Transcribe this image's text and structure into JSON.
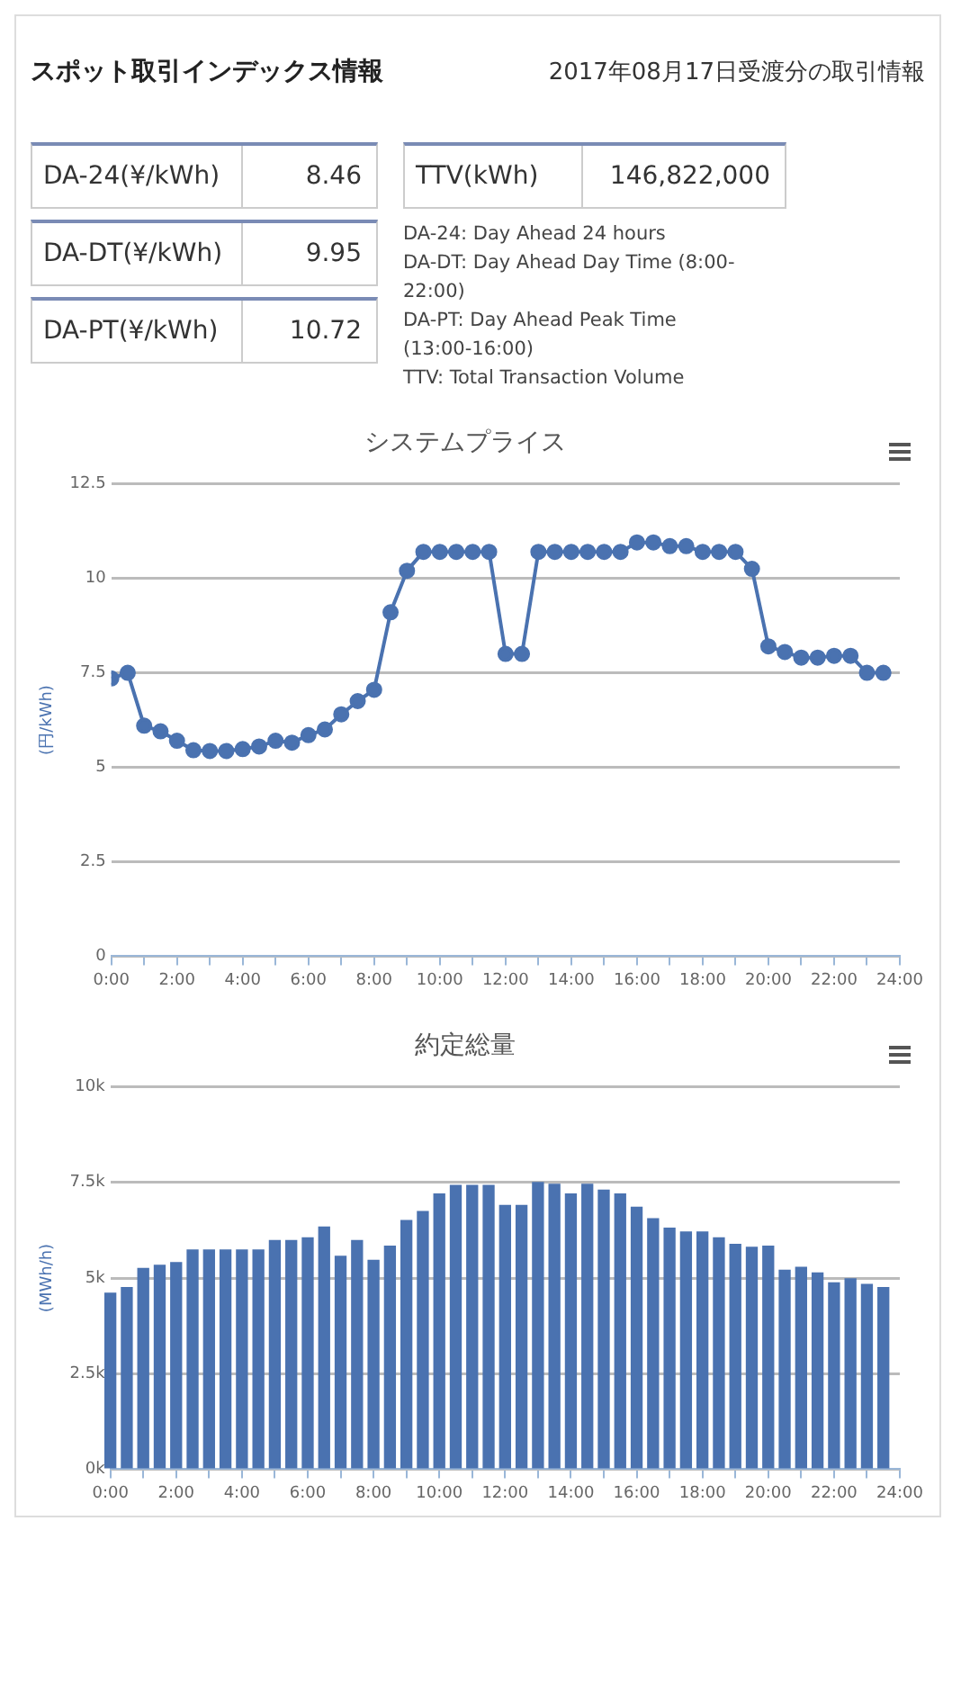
{
  "chart_data": [
    {
      "type": "other",
      "title": "スポット取引インデックス情報",
      "subtitle": "2017年08月17日受渡分の取引情報",
      "annotations": [
        "DA-24(¥/kWh)",
        "8.46",
        "DA-DT(¥/kWh)",
        "9.95",
        "DA-PT(¥/kWh)",
        "10.72",
        "TTV(kWh)",
        "146,822,000",
        "DA-24: Day Ahead 24 hours",
        "DA-DT: Day Ahead Day Time (8:00-22:00)",
        "DA-PT: Day Ahead Peak Time (13:00-16:00)",
        "TTV: Total Transaction Volume"
      ]
    },
    {
      "type": "line",
      "title": "システムプライス",
      "ylabel": "(円/kWh)",
      "marker": "circle",
      "grid": "y",
      "legend": false,
      "x": [
        0,
        0.5,
        1,
        1.5,
        2,
        2.5,
        3,
        3.5,
        4,
        4.5,
        5,
        5.5,
        6,
        6.5,
        7,
        7.5,
        8,
        8.5,
        9,
        9.5,
        10,
        10.5,
        11,
        11.5,
        12,
        12.5,
        13,
        13.5,
        14,
        14.5,
        15,
        15.5,
        16,
        16.5,
        17,
        17.5,
        18,
        18.5,
        19,
        19.5,
        20,
        20.5,
        21,
        21.5,
        22,
        22.5,
        23,
        23.5
      ],
      "series": [
        {
          "color": "#4a72b0",
          "values": [
            7.35,
            7.5,
            6.1,
            5.95,
            5.7,
            5.45,
            5.43,
            5.43,
            5.48,
            5.55,
            5.7,
            5.65,
            5.85,
            6.0,
            6.4,
            6.75,
            7.05,
            9.1,
            10.2,
            10.7,
            10.7,
            10.7,
            10.7,
            10.7,
            8.0,
            8.0,
            10.7,
            10.7,
            10.7,
            10.7,
            10.7,
            10.7,
            10.95,
            10.95,
            10.85,
            10.85,
            10.7,
            10.7,
            10.7,
            10.25,
            8.2,
            8.05,
            7.9,
            7.9,
            7.95,
            7.95,
            7.5,
            7.5
          ]
        }
      ],
      "xlim": [
        0,
        24
      ],
      "xticks": [
        {
          "value": 0,
          "label": "0:00"
        },
        {
          "value": 1,
          "label": null
        },
        {
          "value": 2,
          "label": "2:00"
        },
        {
          "value": 3,
          "label": null
        },
        {
          "value": 4,
          "label": "4:00"
        },
        {
          "value": 5,
          "label": null
        },
        {
          "value": 6,
          "label": "6:00"
        },
        {
          "value": 7,
          "label": null
        },
        {
          "value": 8,
          "label": "8:00"
        },
        {
          "value": 9,
          "label": null
        },
        {
          "value": 10,
          "label": "10:00"
        },
        {
          "value": 11,
          "label": null
        },
        {
          "value": 12,
          "label": "12:00"
        },
        {
          "value": 13,
          "label": null
        },
        {
          "value": 14,
          "label": "14:00"
        },
        {
          "value": 15,
          "label": null
        },
        {
          "value": 16,
          "label": "16:00"
        },
        {
          "value": 17,
          "label": null
        },
        {
          "value": 18,
          "label": "18:00"
        },
        {
          "value": 19,
          "label": null
        },
        {
          "value": 20,
          "label": "20:00"
        },
        {
          "value": 21,
          "label": null
        },
        {
          "value": 22,
          "label": "22:00"
        },
        {
          "value": 23,
          "label": null
        },
        {
          "value": 24,
          "label": "24:00"
        }
      ],
      "ylim": [
        0,
        12.5
      ],
      "yticks": [
        0,
        2.5,
        5,
        7.5,
        10,
        12.5
      ]
    },
    {
      "type": "bar",
      "title": "約定総量",
      "ylabel": "(MWh/h)",
      "grid": "y",
      "legend": false,
      "x": [
        0,
        0.5,
        1,
        1.5,
        2,
        2.5,
        3,
        3.5,
        4,
        4.5,
        5,
        5.5,
        6,
        6.5,
        7,
        7.5,
        8,
        8.5,
        9,
        9.5,
        10,
        10.5,
        11,
        11.5,
        12,
        12.5,
        13,
        13.5,
        14,
        14.5,
        15,
        15.5,
        16,
        16.5,
        17,
        17.5,
        18,
        18.5,
        19,
        19.5,
        20,
        20.5,
        21,
        21.5,
        22,
        22.5,
        23,
        23.5
      ],
      "series": [
        {
          "color": "#4a72b0",
          "values": [
            4600,
            4750,
            5250,
            5330,
            5400,
            5730,
            5730,
            5730,
            5730,
            5730,
            5980,
            5980,
            6050,
            6330,
            5570,
            5980,
            5460,
            5830,
            6500,
            6740,
            7200,
            7420,
            7420,
            7420,
            6900,
            6900,
            7500,
            7450,
            7200,
            7450,
            7300,
            7200,
            6850,
            6550,
            6300,
            6200,
            6200,
            6050,
            5880,
            5800,
            5830,
            5200,
            5280,
            5130,
            4870,
            4980,
            4830,
            4750
          ]
        }
      ],
      "xlim": [
        0,
        24
      ],
      "xticks": [
        {
          "value": 0,
          "label": "0:00"
        },
        {
          "value": 1,
          "label": null
        },
        {
          "value": 2,
          "label": "2:00"
        },
        {
          "value": 3,
          "label": null
        },
        {
          "value": 4,
          "label": "4:00"
        },
        {
          "value": 5,
          "label": null
        },
        {
          "value": 6,
          "label": "6:00"
        },
        {
          "value": 7,
          "label": null
        },
        {
          "value": 8,
          "label": "8:00"
        },
        {
          "value": 9,
          "label": null
        },
        {
          "value": 10,
          "label": "10:00"
        },
        {
          "value": 11,
          "label": null
        },
        {
          "value": 12,
          "label": "12:00"
        },
        {
          "value": 13,
          "label": null
        },
        {
          "value": 14,
          "label": "14:00"
        },
        {
          "value": 15,
          "label": null
        },
        {
          "value": 16,
          "label": "16:00"
        },
        {
          "value": 17,
          "label": null
        },
        {
          "value": 18,
          "label": "18:00"
        },
        {
          "value": 19,
          "label": null
        },
        {
          "value": 20,
          "label": "20:00"
        },
        {
          "value": 21,
          "label": null
        },
        {
          "value": 22,
          "label": "22:00"
        },
        {
          "value": 23,
          "label": null
        },
        {
          "value": 24,
          "label": "24:00"
        }
      ],
      "ylim": [
        0,
        10000
      ],
      "yticks": [
        {
          "value": 0,
          "label": "0k"
        },
        {
          "value": 2500,
          "label": "2.5k"
        },
        {
          "value": 5000,
          "label": "5k"
        },
        {
          "value": 7500,
          "label": "7.5k"
        },
        {
          "value": 10000,
          "label": "10k"
        }
      ]
    }
  ]
}
